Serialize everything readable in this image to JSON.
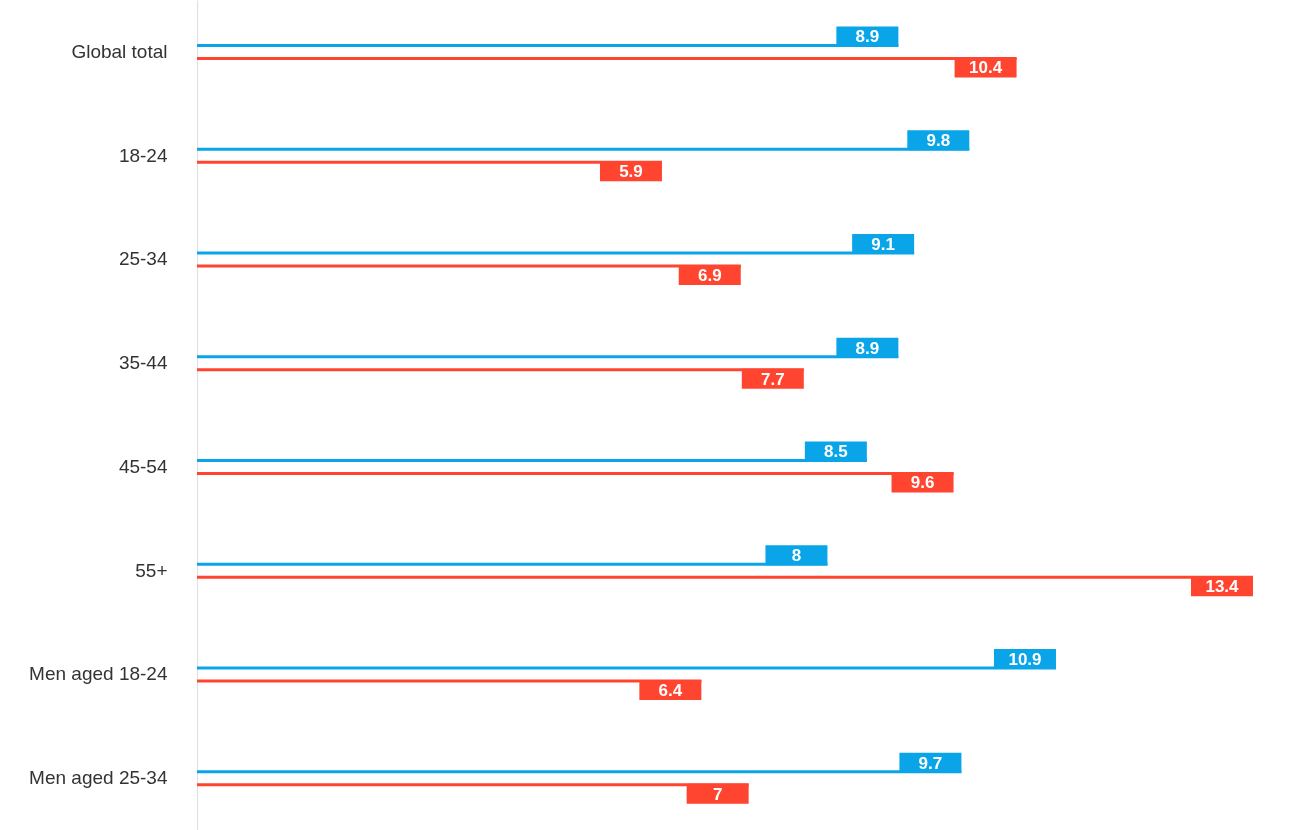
{
  "chart_data": {
    "type": "bar",
    "orientation": "horizontal",
    "data_labels": true,
    "categories": [
      "Global total",
      "18-24",
      "25-34",
      "35-44",
      "45-54",
      "55+",
      "Men aged 18-24",
      "Men aged 25-34"
    ],
    "series": [
      {
        "color": "#0aa5e8",
        "values": [
          8.9,
          9.8,
          9.1,
          8.9,
          8.5,
          8,
          10.9,
          9.7
        ]
      },
      {
        "color": "#ff4530",
        "values": [
          10.4,
          5.9,
          6.9,
          7.7,
          9.6,
          13.4,
          6.4,
          7
        ]
      }
    ]
  }
}
